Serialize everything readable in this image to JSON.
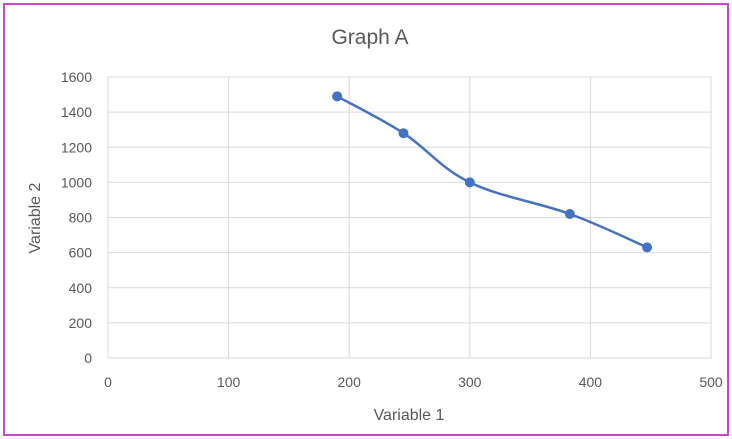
{
  "chart_data": {
    "type": "scatter",
    "title": "Graph A",
    "xlabel": "Variable 1",
    "ylabel": "Variable 2",
    "xlim": [
      0,
      500
    ],
    "ylim": [
      0,
      1600
    ],
    "x_ticks": [
      0,
      100,
      200,
      300,
      400,
      500
    ],
    "y_ticks": [
      0,
      200,
      400,
      600,
      800,
      1000,
      1200,
      1400,
      1600
    ],
    "grid": true,
    "smooth_line": true,
    "series": [
      {
        "x": [
          190,
          245,
          300,
          383,
          447
        ],
        "y": [
          1490,
          1280,
          1000,
          820,
          630
        ]
      }
    ],
    "colors": {
      "series": "#4472c4",
      "grid": "#d9d9d9",
      "text": "#595959",
      "frame": "#c848c8"
    }
  }
}
